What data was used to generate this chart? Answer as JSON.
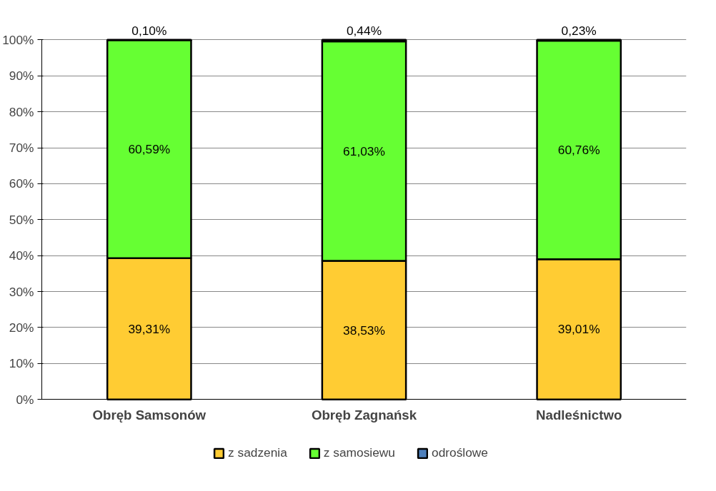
{
  "chart_data": {
    "type": "bar",
    "stacked": true,
    "categories": [
      "Obręb Samsonów",
      "Obręb Zagnańsk",
      "Nadleśnictwo"
    ],
    "series": [
      {
        "name": "z sadzenia",
        "color": "#ffcc33",
        "values": [
          39.31,
          38.53,
          39.01
        ],
        "value_labels": [
          "39,31%",
          "38,53%",
          "39,01%"
        ]
      },
      {
        "name": "z samosiewu",
        "color": "#66ff33",
        "values": [
          60.59,
          61.03,
          60.76
        ],
        "value_labels": [
          "60,59%",
          "61,03%",
          "60,76%"
        ]
      },
      {
        "name": "odroślowe",
        "color": "#4f81bd",
        "values": [
          0.1,
          0.44,
          0.23
        ],
        "value_labels": [
          "0,10%",
          "0,44%",
          "0,23%"
        ]
      }
    ],
    "ylim": [
      0,
      100
    ],
    "yticks": [
      {
        "value": 0,
        "label": "0%"
      },
      {
        "value": 10,
        "label": "10%"
      },
      {
        "value": 20,
        "label": "20%"
      },
      {
        "value": 30,
        "label": "30%"
      },
      {
        "value": 40,
        "label": "40%"
      },
      {
        "value": 50,
        "label": "50%"
      },
      {
        "value": 60,
        "label": "60%"
      },
      {
        "value": 70,
        "label": "70%"
      },
      {
        "value": 80,
        "label": "80%"
      },
      {
        "value": 90,
        "label": "90%"
      },
      {
        "value": 100,
        "label": "100%"
      }
    ],
    "grid": "y",
    "legend": "bottom"
  }
}
